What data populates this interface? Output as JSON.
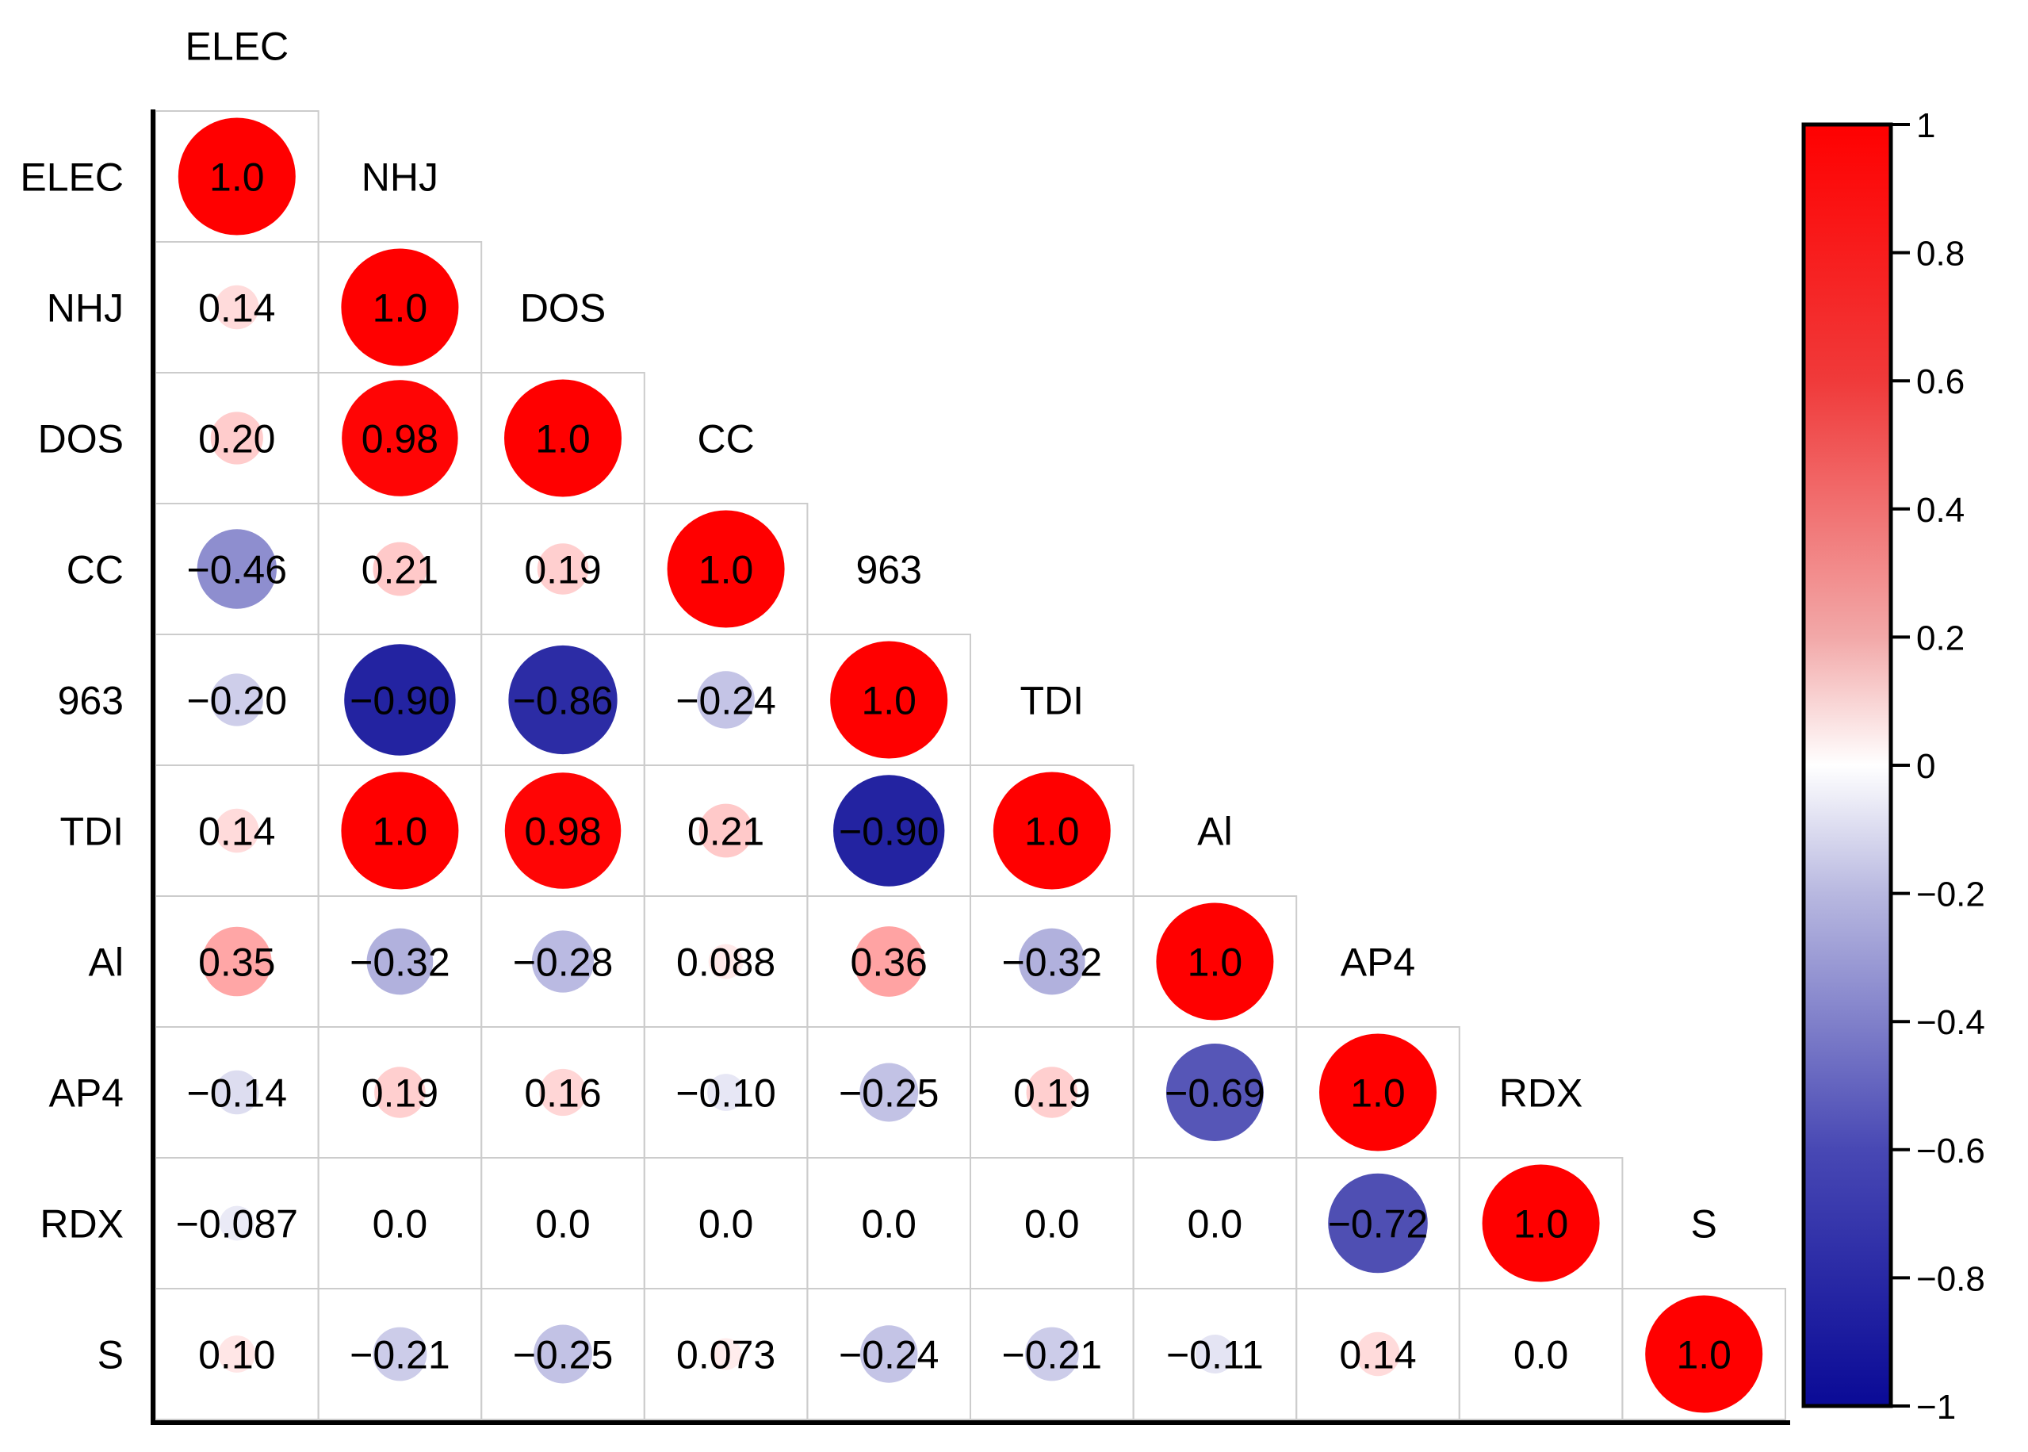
{
  "chart_data": {
    "type": "heatmap",
    "subtype": "correlation-matrix-lower-triangle",
    "variables": [
      "ELEC",
      "NHJ",
      "DOS",
      "CC",
      "963",
      "TDI",
      "Al",
      "AP4",
      "RDX",
      "S"
    ],
    "matrix": [
      [
        1.0
      ],
      [
        0.14,
        1.0
      ],
      [
        0.2,
        0.98,
        1.0
      ],
      [
        -0.46,
        0.21,
        0.19,
        1.0
      ],
      [
        -0.2,
        -0.9,
        -0.86,
        -0.24,
        1.0
      ],
      [
        0.14,
        1.0,
        0.98,
        0.21,
        -0.9,
        1.0
      ],
      [
        0.35,
        -0.32,
        -0.28,
        0.088,
        0.36,
        -0.32,
        1.0
      ],
      [
        -0.14,
        0.19,
        0.16,
        -0.1,
        -0.25,
        0.19,
        -0.69,
        1.0
      ],
      [
        -0.087,
        0.0,
        0.0,
        0.0,
        0.0,
        0.0,
        0.0,
        -0.72,
        1.0
      ],
      [
        0.1,
        -0.21,
        -0.25,
        0.073,
        -0.24,
        -0.21,
        -0.11,
        0.14,
        0.0,
        1.0
      ]
    ],
    "labels": [
      [
        "1.0"
      ],
      [
        "0.14",
        "1.0"
      ],
      [
        "0.20",
        "0.98",
        "1.0"
      ],
      [
        "−0.46",
        "0.21",
        "0.19",
        "1.0"
      ],
      [
        "−0.20",
        "−0.90",
        "−0.86",
        "−0.24",
        "1.0"
      ],
      [
        "0.14",
        "1.0",
        "0.98",
        "0.21",
        "−0.90",
        "1.0"
      ],
      [
        "0.35",
        "−0.32",
        "−0.28",
        "0.088",
        "0.36",
        "−0.32",
        "1.0"
      ],
      [
        "−0.14",
        "0.19",
        "0.16",
        "−0.10",
        "−0.25",
        "0.19",
        "−0.69",
        "1.0"
      ],
      [
        "−0.087",
        "0.0",
        "0.0",
        "0.0",
        "0.0",
        "0.0",
        "0.0",
        "−0.72",
        "1.0"
      ],
      [
        "0.10",
        "−0.21",
        "−0.25",
        "0.073",
        "−0.24",
        "−0.21",
        "−0.11",
        "0.14",
        "0.0",
        "1.0"
      ]
    ],
    "marker": "circle (size ∝ |r|)",
    "colorbar": {
      "range": [
        -1,
        1
      ],
      "ticks": [
        1,
        0.8,
        0.6,
        0.4,
        0.2,
        0,
        -0.2,
        -0.4,
        -0.6,
        -0.8,
        -1
      ],
      "tick_labels": [
        "1",
        "0.8",
        "0.6",
        "0.4",
        "0.2",
        "0",
        "−0.2",
        "−0.4",
        "−0.6",
        "−0.8",
        "−1"
      ],
      "position": "right"
    },
    "colors": {
      "positive": "#ff0000",
      "neutral": "#ffffff",
      "negative": "#0a0a96",
      "grid": "#cccccc",
      "axis": "#000000"
    },
    "title": "",
    "xlabel": "",
    "ylabel": ""
  }
}
